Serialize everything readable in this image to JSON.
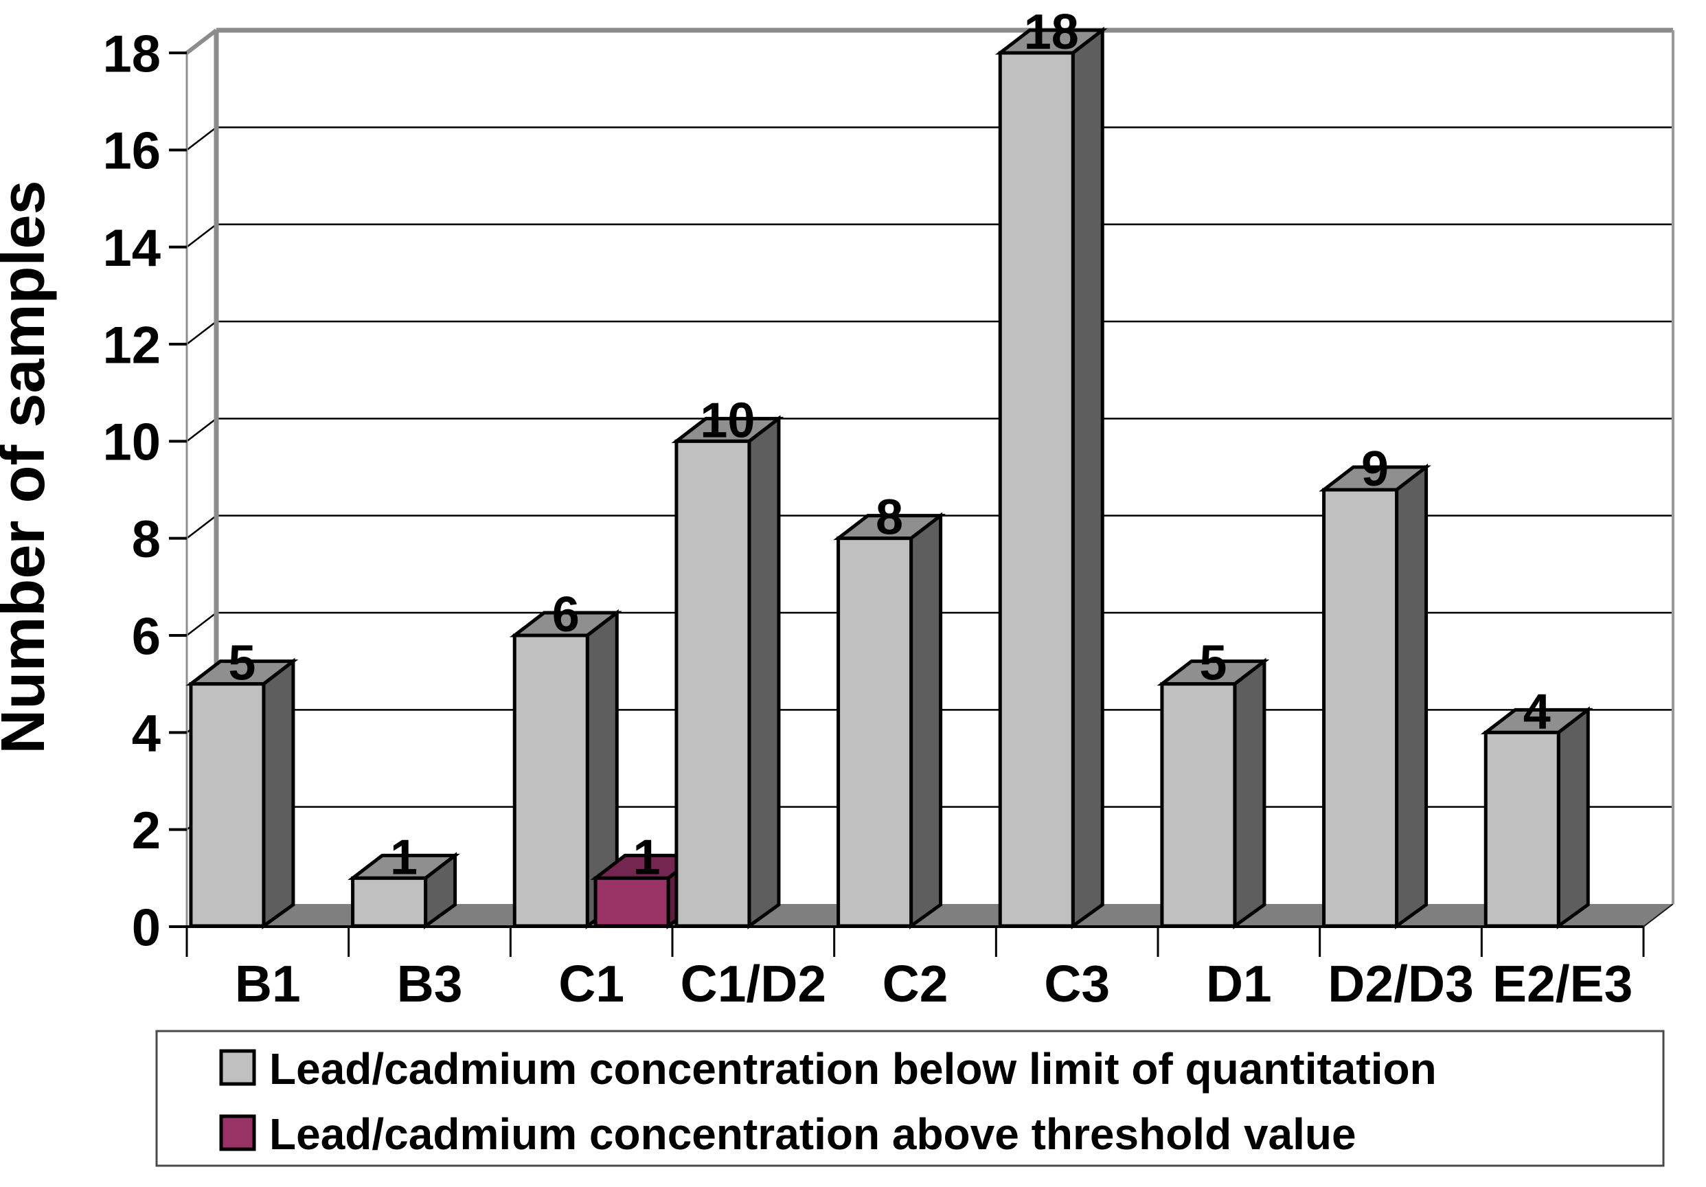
{
  "chart_data": {
    "type": "bar",
    "style": "3d-column",
    "title": "",
    "categories": [
      "B1",
      "B3",
      "C1",
      "C1/D2",
      "C2",
      "C3",
      "D1",
      "D2/D3",
      "E2/E3"
    ],
    "series": [
      {
        "name": "Lead/cadmium concentration below limit of quantitation",
        "color": "#c0c0c0",
        "color_top": "#8f8f8f",
        "color_side": "#5e5e5e",
        "values": [
          5,
          1,
          6,
          10,
          8,
          18,
          5,
          9,
          4
        ]
      },
      {
        "name": "Lead/cadmium concentration above threshold value",
        "color": "#993366",
        "color_top": "#722650",
        "color_side": "#5c1f40",
        "values": [
          0,
          0,
          1,
          0,
          0,
          0,
          0,
          0,
          0
        ]
      }
    ],
    "xlabel": "",
    "ylabel": "Number of samples",
    "ylim": [
      0,
      18
    ],
    "ytick_step": 2,
    "yticks": [
      0,
      2,
      4,
      6,
      8,
      10,
      12,
      14,
      16,
      18
    ],
    "grid": true,
    "data_labels": true,
    "legend_position": "bottom",
    "floor_color": "#7f7f7f",
    "wall_edge_color": "#8c8c8c",
    "gridline_color": "#000000",
    "outline_color": "#000000"
  }
}
